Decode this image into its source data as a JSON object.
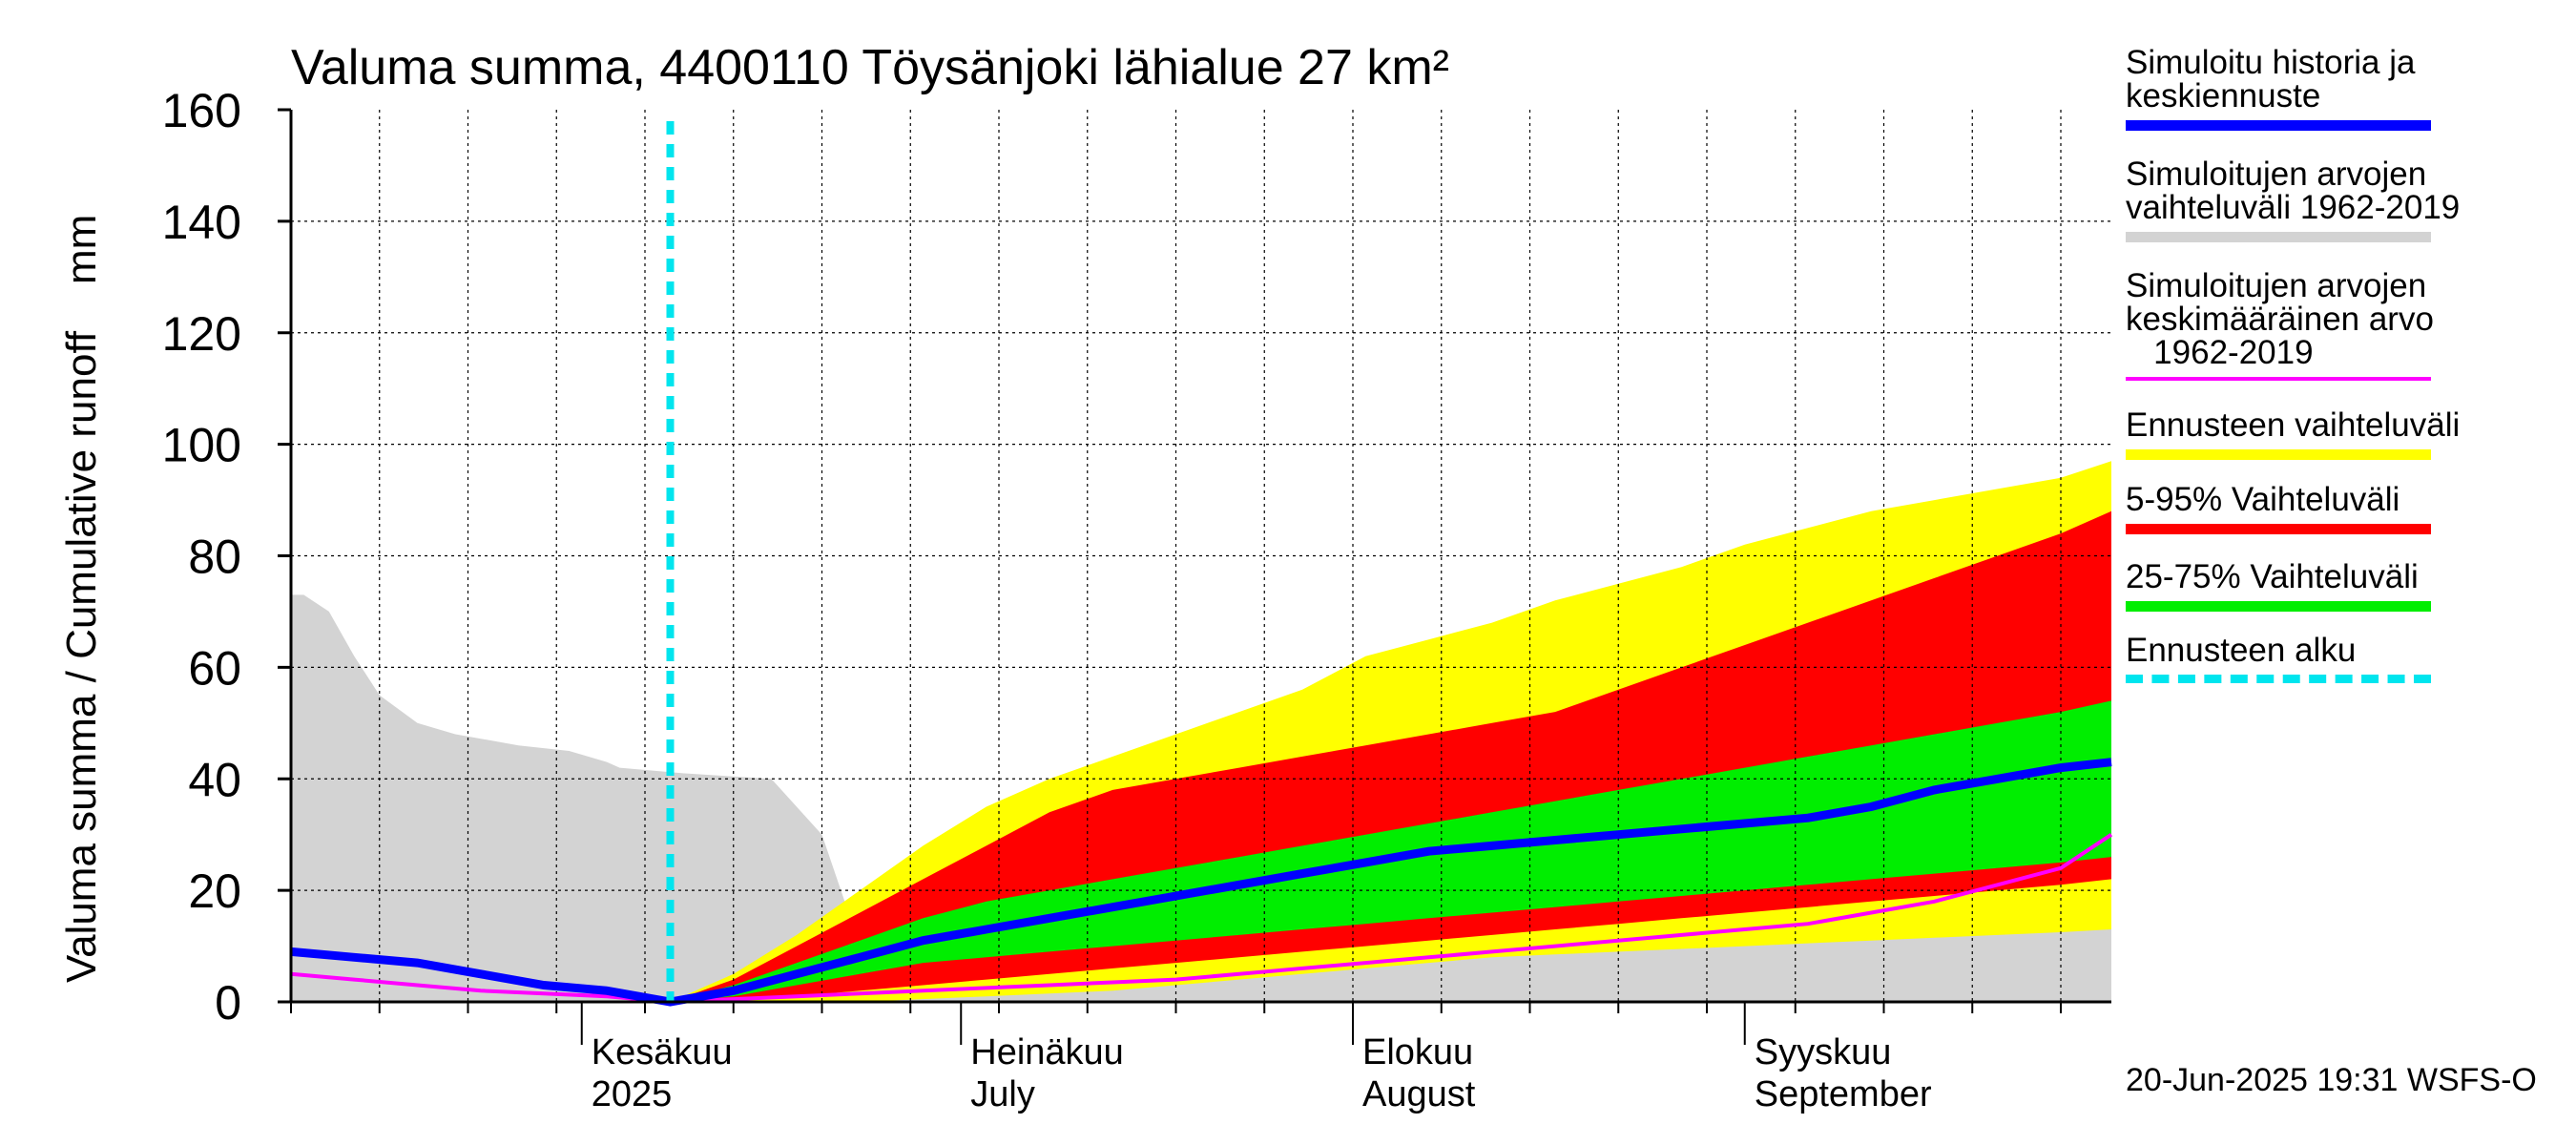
{
  "title": "Valuma summa, 4400110 Töysänjoki lähialue 27 km²",
  "footer": "20-Jun-2025 19:31 WSFS-O",
  "colors": {
    "hist_range": "#d3d3d3",
    "forecast_range": "#ffff00",
    "p5_95": "#ff0000",
    "p25_75": "#00ee00",
    "median": "#0000ff",
    "mean": "#ff00ff",
    "forecast_start": "#00e5ee"
  },
  "legend": [
    {
      "label": "Simuloitu historia ja\nkeskiennuste",
      "swatch": "median",
      "style": "line"
    },
    {
      "label": "Simuloitujen arvojen\nvaihteluväli 1962-2019",
      "swatch": "hist_range",
      "style": "line"
    },
    {
      "label": "Simuloitujen arvojen\nkeskimääräinen arvo\n   1962-2019",
      "swatch": "mean",
      "style": "thin"
    },
    {
      "label": "Ennusteen vaihteluväli",
      "swatch": "forecast_range",
      "style": "line"
    },
    {
      "label": "5-95% Vaihteluväli",
      "swatch": "p5_95",
      "style": "line"
    },
    {
      "label": "25-75% Vaihteluväli",
      "swatch": "p25_75",
      "style": "line"
    },
    {
      "label": "Ennusteen alku",
      "swatch": "forecast_start",
      "style": "dashed"
    }
  ],
  "chart_data": {
    "type": "area",
    "title": "Valuma summa, 4400110 Töysänjoki lähialue 27 km²",
    "ylabel": "Valuma summa / Cumulative runoff    mm",
    "ylim": [
      0,
      160
    ],
    "yticks": [
      0,
      20,
      40,
      60,
      80,
      100,
      120,
      140,
      160
    ],
    "xlim": [
      "2025-05-09",
      "2025-09-30"
    ],
    "x_month_labels": [
      {
        "date": "2025-06-01",
        "line1": "Kesäkuu",
        "line2": "2025"
      },
      {
        "date": "2025-07-01",
        "line1": "Heinäkuu",
        "line2": "July"
      },
      {
        "date": "2025-08-01",
        "line1": "Elokuu",
        "line2": "August"
      },
      {
        "date": "2025-09-01",
        "line1": "Syyskuu",
        "line2": "September"
      }
    ],
    "grid": true,
    "forecast_start": "2025-06-08",
    "hist_range": {
      "x": [
        "2025-05-09",
        "2025-05-10",
        "2025-05-12",
        "2025-05-14",
        "2025-05-16",
        "2025-05-19",
        "2025-05-22",
        "2025-05-27",
        "2025-05-31",
        "2025-06-03",
        "2025-06-04",
        "2025-06-09",
        "2025-06-16",
        "2025-06-20",
        "2025-06-23",
        "2025-06-27",
        "2025-06-30",
        "2025-07-01",
        "2025-07-03",
        "2025-07-05",
        "2025-07-10",
        "2025-07-20",
        "2025-07-22",
        "2025-07-25",
        "2025-07-31",
        "2025-08-10",
        "2025-08-15",
        "2025-08-18",
        "2025-08-20",
        "2025-08-22",
        "2025-08-25",
        "2025-08-28",
        "2025-09-02",
        "2025-09-06",
        "2025-09-10",
        "2025-09-15",
        "2025-09-20",
        "2025-09-25",
        "2025-09-30"
      ],
      "lower": [
        0,
        0,
        0,
        0,
        0,
        0,
        0,
        0,
        0,
        0,
        0,
        0,
        0,
        0,
        0,
        0,
        0,
        0,
        0,
        0,
        0,
        0,
        0,
        0,
        0,
        0,
        0,
        0,
        0,
        0,
        0,
        0,
        0,
        0,
        0,
        0,
        0,
        0,
        0
      ],
      "upper": [
        73,
        73,
        70,
        62,
        55,
        50,
        48,
        46,
        45,
        43,
        42,
        41,
        40,
        30,
        10,
        12,
        14,
        17,
        19,
        20,
        22,
        26,
        28,
        32,
        40,
        55,
        60,
        62,
        63,
        64,
        65,
        66,
        70,
        75,
        80,
        85,
        86,
        86,
        87
      ]
    },
    "series": [
      {
        "name": "Ennusteen vaihteluväli",
        "x": [
          "2025-06-08",
          "2025-06-13",
          "2025-06-18",
          "2025-06-23",
          "2025-06-28",
          "2025-07-03",
          "2025-07-08",
          "2025-07-13",
          "2025-07-18",
          "2025-07-23",
          "2025-07-28",
          "2025-08-02",
          "2025-08-07",
          "2025-08-12",
          "2025-08-17",
          "2025-08-22",
          "2025-08-27",
          "2025-09-01",
          "2025-09-06",
          "2025-09-11",
          "2025-09-16",
          "2025-09-21",
          "2025-09-26",
          "2025-09-30"
        ],
        "lower": [
          0,
          0,
          0,
          0,
          0.5,
          1,
          1.5,
          2,
          3,
          4,
          5,
          6,
          7,
          8,
          8.5,
          9,
          9.5,
          10,
          10.5,
          11,
          11.5,
          12,
          12.5,
          13
        ],
        "upper": [
          0,
          5,
          12,
          20,
          28,
          35,
          40,
          44,
          48,
          52,
          56,
          62,
          65,
          68,
          72,
          75,
          78,
          82,
          85,
          88,
          90,
          92,
          94,
          97
        ]
      },
      {
        "name": "5-95% Vaihteluväli",
        "x": [
          "2025-06-08",
          "2025-06-13",
          "2025-06-18",
          "2025-06-23",
          "2025-06-28",
          "2025-07-03",
          "2025-07-08",
          "2025-07-13",
          "2025-07-18",
          "2025-07-23",
          "2025-07-28",
          "2025-08-02",
          "2025-08-07",
          "2025-08-12",
          "2025-08-17",
          "2025-08-22",
          "2025-08-27",
          "2025-09-01",
          "2025-09-06",
          "2025-09-11",
          "2025-09-16",
          "2025-09-21",
          "2025-09-26",
          "2025-09-30"
        ],
        "lower": [
          0,
          0.5,
          1,
          2,
          3,
          4,
          5,
          6,
          7,
          8,
          9,
          10,
          11,
          12,
          13,
          14,
          15,
          16,
          17,
          18,
          19,
          20,
          21,
          22
        ],
        "upper": [
          0,
          4,
          10,
          16,
          22,
          28,
          34,
          38,
          40,
          42,
          44,
          46,
          48,
          50,
          52,
          56,
          60,
          64,
          68,
          72,
          76,
          80,
          84,
          88
        ]
      },
      {
        "name": "25-75% Vaihteluväli",
        "x": [
          "2025-06-08",
          "2025-06-13",
          "2025-06-18",
          "2025-06-23",
          "2025-06-28",
          "2025-07-03",
          "2025-07-08",
          "2025-07-13",
          "2025-07-18",
          "2025-07-23",
          "2025-07-28",
          "2025-08-02",
          "2025-08-07",
          "2025-08-12",
          "2025-08-17",
          "2025-08-22",
          "2025-08-27",
          "2025-09-01",
          "2025-09-06",
          "2025-09-11",
          "2025-09-16",
          "2025-09-21",
          "2025-09-26",
          "2025-09-30"
        ],
        "lower": [
          0,
          1,
          3,
          5,
          7,
          8,
          9,
          10,
          11,
          12,
          13,
          14,
          15,
          16,
          17,
          18,
          19,
          20,
          21,
          22,
          23,
          24,
          25,
          26
        ],
        "upper": [
          0,
          3,
          7,
          11,
          15,
          18,
          20,
          22,
          24,
          26,
          28,
          30,
          32,
          34,
          36,
          38,
          40,
          42,
          44,
          46,
          48,
          50,
          52,
          54
        ]
      },
      {
        "name": "Simuloitu historia ja keskiennuste",
        "x": [
          "2025-05-09",
          "2025-05-14",
          "2025-05-19",
          "2025-05-24",
          "2025-05-29",
          "2025-06-03",
          "2025-06-08",
          "2025-06-13",
          "2025-06-18",
          "2025-06-23",
          "2025-06-28",
          "2025-07-03",
          "2025-07-08",
          "2025-07-13",
          "2025-07-18",
          "2025-07-23",
          "2025-07-28",
          "2025-08-02",
          "2025-08-07",
          "2025-08-12",
          "2025-08-17",
          "2025-08-22",
          "2025-08-27",
          "2025-09-01",
          "2025-09-06",
          "2025-09-11",
          "2025-09-16",
          "2025-09-21",
          "2025-09-26",
          "2025-09-30"
        ],
        "values": [
          9,
          8,
          7,
          5,
          3,
          2,
          0,
          2,
          5,
          8,
          11,
          13,
          15,
          17,
          19,
          21,
          23,
          25,
          27,
          28,
          29,
          30,
          31,
          32,
          33,
          35,
          38,
          40,
          42,
          43
        ]
      },
      {
        "name": "Simuloitujen arvojen keskimääräinen arvo 1962-2019",
        "x": [
          "2025-05-09",
          "2025-05-14",
          "2025-05-19",
          "2025-05-24",
          "2025-05-29",
          "2025-06-03",
          "2025-06-08",
          "2025-06-13",
          "2025-06-18",
          "2025-06-23",
          "2025-06-28",
          "2025-07-03",
          "2025-07-08",
          "2025-07-13",
          "2025-07-18",
          "2025-07-23",
          "2025-07-28",
          "2025-08-02",
          "2025-08-07",
          "2025-08-12",
          "2025-08-17",
          "2025-08-22",
          "2025-08-27",
          "2025-09-01",
          "2025-09-06",
          "2025-09-11",
          "2025-09-16",
          "2025-09-21",
          "2025-09-26",
          "2025-09-30"
        ],
        "values": [
          5,
          4,
          3,
          2,
          1.5,
          1,
          0,
          0.5,
          1,
          1.5,
          2,
          2.5,
          3,
          3.5,
          4,
          5,
          6,
          7,
          8,
          9,
          10,
          11,
          12,
          13,
          14,
          16,
          18,
          21,
          24,
          30
        ]
      }
    ]
  }
}
